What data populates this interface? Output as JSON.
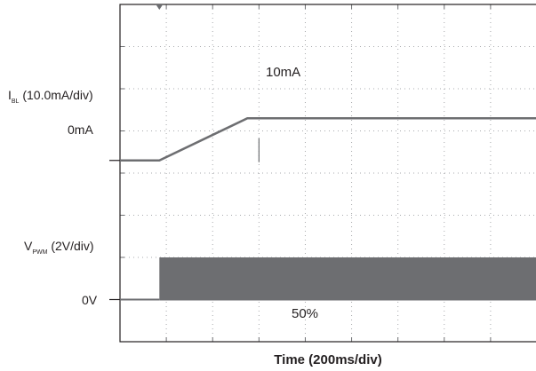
{
  "chart_data": {
    "type": "line",
    "title": "",
    "xlabel": "Time (200ms/div)",
    "x_range": [
      0,
      1800
    ],
    "x_unit": "ms",
    "grid": true,
    "grid_style": "dotted",
    "channel_labels": {
      "ibl": {
        "main": "I",
        "sub": "BL",
        "rest": " (10.0mA/div)",
        "zero": "0mA"
      },
      "vpwm": {
        "main": "V",
        "sub": "PWM",
        "rest": " (2V/div)",
        "zero": "0V"
      }
    },
    "annotations": {
      "top_value": "10mA",
      "duty_cycle": "50%"
    },
    "series": [
      {
        "x": [
          0,
          170,
          550,
          1800
        ],
        "y": [
          0,
          0,
          10,
          10
        ],
        "unit": "mA",
        "scale_per_div": 10.0,
        "color": "#6d6e71"
      },
      {
        "x": [
          0,
          170,
          170,
          1800
        ],
        "y": [
          0,
          0,
          2,
          2
        ],
        "unit": "V",
        "scale_per_div": 2,
        "duty_cycle_after_step": 50,
        "color": "#6d6e71"
      }
    ]
  }
}
